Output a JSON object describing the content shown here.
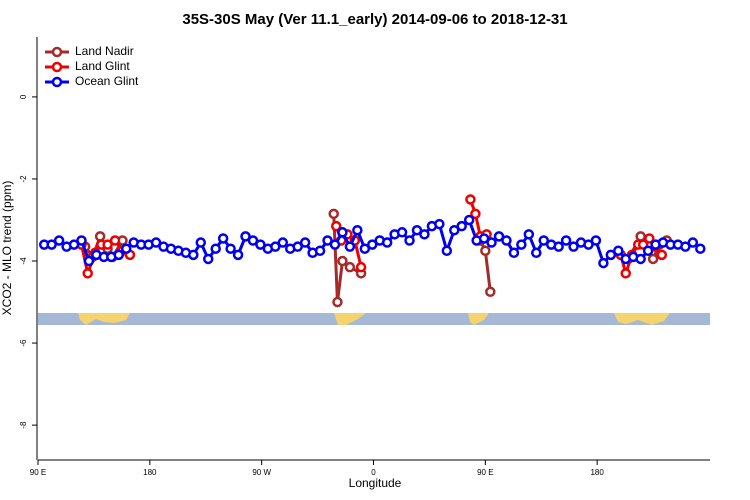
{
  "chart_data": {
    "type": "line",
    "title": "35S-30S May (Ver 11.1_early)   2014-09-06 to 2018-12-31",
    "x_label": "Longitude",
    "y_label": "XCO2 - MLO trend (ppm)",
    "xlim": [
      90,
      630
    ],
    "ylim": [
      1.46,
      -8.85
    ],
    "xticks": [
      {
        "value": 90,
        "label": "90 E"
      },
      180,
      {
        "value": 270,
        "label": "90 W"
      },
      {
        "value": 360,
        "label": "0"
      },
      {
        "value": 450,
        "label": "90 E"
      },
      {
        "value": 540,
        "label": "180"
      }
    ],
    "yticks": [
      0,
      -2,
      -4,
      -6,
      -8
    ],
    "legend": "top-left",
    "series": [
      {
        "name": "Land Nadir",
        "color": "#a52a2a",
        "x": [
          128,
          134,
          140,
          146,
          150,
          158,
          null,
          328,
          331,
          335,
          341,
          350,
          null,
          446,
          450,
          454,
          null,
          565,
          575,
          585,
          590,
          596
        ],
        "values": [
          -3.65,
          -3.9,
          -3.4,
          -3.7,
          -3.9,
          -3.5,
          null,
          -2.85,
          -5.0,
          -4.0,
          -4.15,
          -4.3,
          null,
          -3.5,
          -3.75,
          -4.75,
          null,
          -3.95,
          -3.4,
          -3.95,
          -3.6,
          -3.5
        ]
      },
      {
        "name": "Land Glint",
        "color": "#ee0000",
        "x": [
          125,
          130,
          136,
          141,
          146,
          152,
          158,
          164,
          null,
          330,
          334,
          339,
          345,
          350,
          null,
          438,
          442,
          446,
          451,
          null,
          559,
          563,
          568,
          573,
          577,
          582,
          587,
          592
        ],
        "values": [
          -3.6,
          -4.3,
          -3.8,
          -3.6,
          -3.6,
          -3.5,
          -3.75,
          -3.85,
          null,
          -3.15,
          -3.5,
          -3.35,
          -3.5,
          -4.15,
          null,
          -2.5,
          -2.85,
          -3.4,
          -3.35,
          null,
          -3.85,
          -4.3,
          -3.85,
          -3.6,
          -3.6,
          -3.45,
          -3.65,
          -3.85
        ]
      },
      {
        "name": "Ocean Glint",
        "color": "#0000ee",
        "x": [
          95,
          101,
          107,
          113,
          119,
          125,
          131,
          137,
          143,
          149,
          155,
          161,
          167,
          173,
          179,
          185,
          191,
          197,
          203,
          209,
          215,
          221,
          227,
          233,
          239,
          245,
          251,
          257,
          263,
          269,
          275,
          281,
          287,
          293,
          299,
          305,
          311,
          317,
          323,
          329,
          335,
          341,
          347,
          353,
          359,
          365,
          371,
          377,
          383,
          389,
          395,
          401,
          407,
          413,
          419,
          425,
          431,
          437,
          443,
          449,
          455,
          461,
          467,
          473,
          479,
          485,
          491,
          497,
          503,
          509,
          515,
          521,
          527,
          533,
          539,
          545,
          551,
          557,
          563,
          569,
          575,
          581,
          587,
          593,
          599,
          605,
          611,
          617,
          623
        ],
        "values": [
          -3.6,
          -3.6,
          -3.5,
          -3.65,
          -3.6,
          -3.5,
          -4.0,
          -3.85,
          -3.9,
          -3.9,
          -3.85,
          -3.7,
          -3.55,
          -3.6,
          -3.6,
          -3.55,
          -3.65,
          -3.7,
          -3.75,
          -3.8,
          -3.85,
          -3.55,
          -3.95,
          -3.7,
          -3.45,
          -3.7,
          -3.85,
          -3.4,
          -3.5,
          -3.6,
          -3.7,
          -3.65,
          -3.55,
          -3.7,
          -3.65,
          -3.55,
          -3.8,
          -3.75,
          -3.5,
          -3.6,
          -3.3,
          -3.65,
          -3.25,
          -3.7,
          -3.6,
          -3.5,
          -3.55,
          -3.35,
          -3.3,
          -3.5,
          -3.25,
          -3.35,
          -3.15,
          -3.1,
          -3.75,
          -3.25,
          -3.15,
          -3.0,
          -3.5,
          -3.45,
          -3.55,
          -3.4,
          -3.5,
          -3.8,
          -3.6,
          -3.35,
          -3.8,
          -3.5,
          -3.6,
          -3.65,
          -3.5,
          -3.65,
          -3.55,
          -3.6,
          -3.5,
          -4.05,
          -3.85,
          -3.75,
          -3.95,
          -3.9,
          -3.95,
          -3.75,
          -3.6,
          -3.55,
          -3.6,
          -3.6,
          -3.65,
          -3.55,
          -3.7
        ]
      }
    ]
  }
}
